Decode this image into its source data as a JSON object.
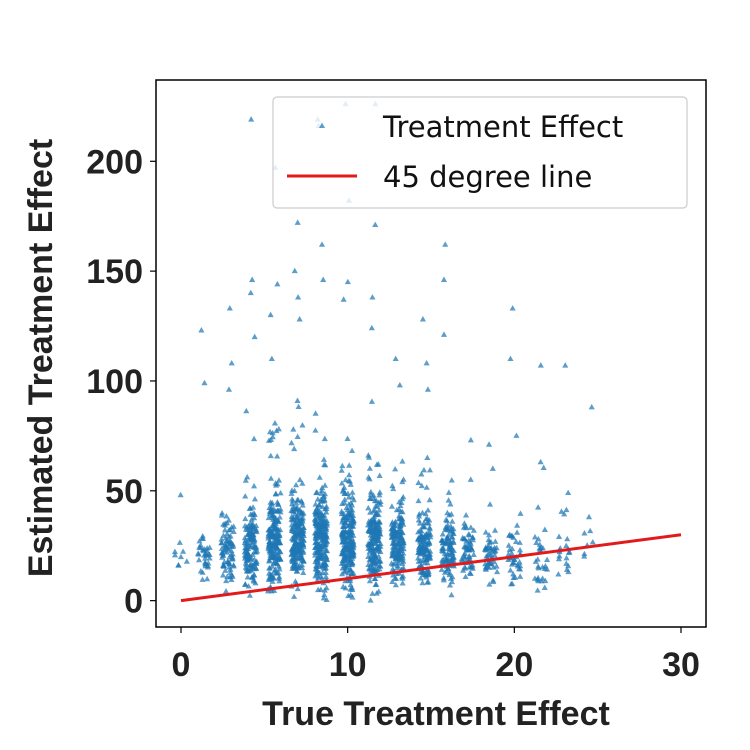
{
  "chart_data": {
    "type": "scatter",
    "xlabel": "True Treatment Effect",
    "ylabel": "Estimated Treatment Effect",
    "xlim": [
      -1.5,
      31.5
    ],
    "ylim": [
      -12,
      237
    ],
    "xticks": [
      0,
      10,
      20,
      30
    ],
    "yticks": [
      0,
      50,
      100,
      150,
      200
    ],
    "grid": false,
    "legend_position": "top-right",
    "series": [
      {
        "name": "Treatment Effect",
        "kind": "scatter",
        "marker": "triangle",
        "color": "#1f77b4",
        "note_on_points": "dense jittered clusters at each x; summary of distribution per cluster",
        "clusters": [
          {
            "x": 0.0,
            "median": 20,
            "spread": 5,
            "n": 8,
            "extremes": [
              48
            ]
          },
          {
            "x": 1.4,
            "median": 20,
            "spread": 8,
            "n": 35,
            "extremes": [
              123,
              99
            ]
          },
          {
            "x": 2.8,
            "median": 22,
            "spread": 12,
            "n": 80,
            "extremes": [
              133,
              108,
              96
            ]
          },
          {
            "x": 4.2,
            "median": 25,
            "spread": 14,
            "n": 140,
            "extremes": [
              219,
              146,
              140,
              120
            ]
          },
          {
            "x": 5.6,
            "median": 27,
            "spread": 15,
            "n": 200,
            "extremes": [
              197,
              144,
              130,
              110
            ]
          },
          {
            "x": 7.0,
            "median": 28,
            "spread": 15,
            "n": 220,
            "extremes": [
              172,
              150,
              138,
              128
            ]
          },
          {
            "x": 8.4,
            "median": 28,
            "spread": 16,
            "n": 230,
            "extremes": [
              219,
              216,
              162,
              146
            ]
          },
          {
            "x": 10.0,
            "median": 27,
            "spread": 15,
            "n": 220,
            "extremes": [
              226,
              182,
              145,
              137
            ]
          },
          {
            "x": 11.6,
            "median": 26,
            "spread": 14,
            "n": 200,
            "extremes": [
              226,
              171,
              138,
              124
            ]
          },
          {
            "x": 13.0,
            "median": 25,
            "spread": 12,
            "n": 160,
            "extremes": [
              110,
              98
            ]
          },
          {
            "x": 14.6,
            "median": 24,
            "spread": 11,
            "n": 140,
            "extremes": [
              128,
              108,
              96
            ]
          },
          {
            "x": 16.0,
            "median": 23,
            "spread": 10,
            "n": 110,
            "extremes": [
              162,
              146,
              121
            ]
          },
          {
            "x": 17.2,
            "median": 22,
            "spread": 9,
            "n": 60,
            "extremes": [
              73,
              55
            ]
          },
          {
            "x": 18.6,
            "median": 20,
            "spread": 8,
            "n": 50,
            "extremes": [
              71,
              60
            ]
          },
          {
            "x": 20.0,
            "median": 20,
            "spread": 8,
            "n": 40,
            "extremes": [
              133,
              110,
              75
            ]
          },
          {
            "x": 21.6,
            "median": 20,
            "spread": 9,
            "n": 30,
            "extremes": [
              107,
              63
            ]
          },
          {
            "x": 23.0,
            "median": 20,
            "spread": 8,
            "n": 20,
            "extremes": [
              107,
              49
            ]
          },
          {
            "x": 24.4,
            "median": 25,
            "spread": 6,
            "n": 6,
            "extremes": [
              88,
              38
            ]
          }
        ]
      },
      {
        "name": "45 degree line",
        "kind": "line",
        "color": "#e31a1c",
        "x": [
          0,
          30
        ],
        "y": [
          0,
          30
        ]
      }
    ]
  }
}
